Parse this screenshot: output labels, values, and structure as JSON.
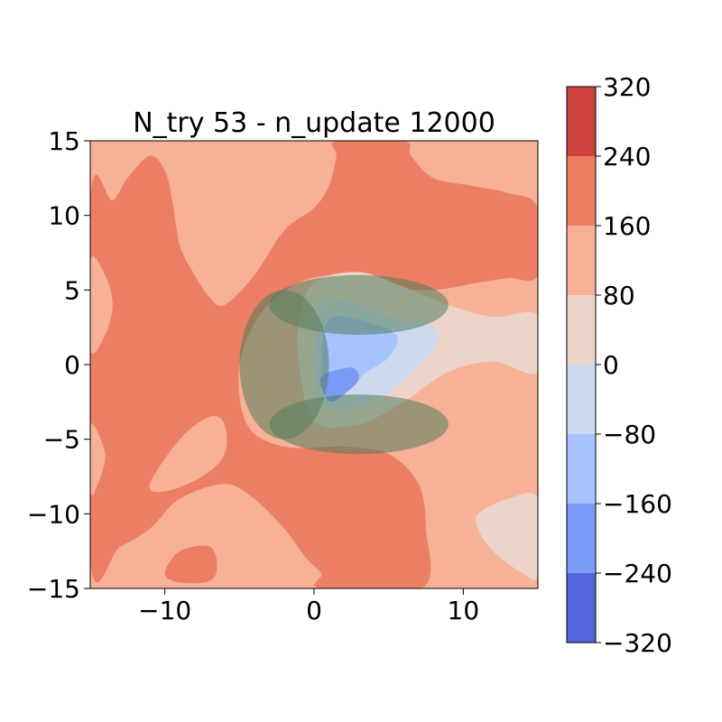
{
  "chart_data": {
    "type": "contourf",
    "title": "N_try 53 - n_update 12000",
    "xlabel": "",
    "ylabel": "",
    "xlim": [
      -15,
      15
    ],
    "ylim": [
      -15,
      15
    ],
    "x_ticks": [
      -10,
      0,
      10
    ],
    "x_tick_labels": [
      "−10",
      "0",
      "10"
    ],
    "y_ticks": [
      -15,
      -10,
      -5,
      0,
      5,
      10,
      15
    ],
    "y_tick_labels": [
      "−15",
      "−10",
      "−5",
      "0",
      "5",
      "10",
      "15"
    ],
    "grid": false,
    "colormap": "coolwarm",
    "colorbar": {
      "levels": [
        -320,
        -240,
        -160,
        -80,
        0,
        80,
        160,
        240,
        320
      ],
      "tick_labels": [
        "−320",
        "−240",
        "−160",
        "−80",
        "0",
        "80",
        "160",
        "240",
        "320"
      ],
      "band_colors": [
        "#5166da",
        "#7b9af6",
        "#a6c3fd",
        "#ccd9ee",
        "#ecd4c9",
        "#f6b196",
        "#ec7f63",
        "#cd423b"
      ]
    },
    "regions": [
      {
        "name": "level 80-160 (background)",
        "band": 5,
        "points": [
          [
            -15,
            -15
          ],
          [
            15,
            -15
          ],
          [
            15,
            15
          ],
          [
            -15,
            15
          ]
        ]
      },
      {
        "name": "level 160-240 main region",
        "band": 6,
        "points": [
          [
            -15,
            11
          ],
          [
            -13.5,
            11
          ],
          [
            -12.5,
            12.5
          ],
          [
            -11,
            14
          ],
          [
            -10,
            13
          ],
          [
            -9.5,
            11
          ],
          [
            -9,
            8
          ],
          [
            -8,
            6
          ],
          [
            -7,
            4.5
          ],
          [
            -6,
            4
          ],
          [
            -4,
            6
          ],
          [
            -2,
            9
          ],
          [
            0,
            10.5
          ],
          [
            1,
            12
          ],
          [
            1.5,
            14
          ],
          [
            1.5,
            15
          ],
          [
            6,
            15
          ],
          [
            6.5,
            14
          ],
          [
            8,
            12.5
          ],
          [
            10.5,
            12
          ],
          [
            13,
            11.5
          ],
          [
            15,
            10.5
          ],
          [
            15,
            6
          ],
          [
            13,
            5.8
          ],
          [
            11,
            5.5
          ],
          [
            8,
            5
          ],
          [
            5,
            5.2
          ],
          [
            2,
            6
          ],
          [
            -1,
            5.5
          ],
          [
            -3.5,
            3.5
          ],
          [
            -5,
            0
          ],
          [
            -4.5,
            -4
          ],
          [
            -2,
            -5.5
          ],
          [
            2,
            -5.5
          ],
          [
            5,
            -6
          ],
          [
            7,
            -8
          ],
          [
            7.5,
            -11
          ],
          [
            7.2,
            -15
          ],
          [
            0.5,
            -15
          ],
          [
            0.5,
            -14
          ],
          [
            -0.5,
            -13
          ],
          [
            -2,
            -11
          ],
          [
            -4,
            -9
          ],
          [
            -6,
            -8
          ],
          [
            -9,
            -9
          ],
          [
            -11,
            -11
          ],
          [
            -13,
            -12.2
          ],
          [
            -15,
            -13
          ]
        ]
      },
      {
        "name": "level 80-160 upper-left pocket",
        "band": 5,
        "points": [
          [
            -15,
            7
          ],
          [
            -14,
            6
          ],
          [
            -13.5,
            4
          ],
          [
            -14,
            2
          ],
          [
            -15,
            1
          ]
        ]
      },
      {
        "name": "level 80-160 lower-left pocket",
        "band": 5,
        "points": [
          [
            -11,
            -8
          ],
          [
            -9,
            -5
          ],
          [
            -7,
            -3.5
          ],
          [
            -6,
            -4
          ],
          [
            -6,
            -6
          ],
          [
            -7.5,
            -7.5
          ],
          [
            -10,
            -8.5
          ]
        ]
      },
      {
        "name": "level 80-160 left-edge pocket",
        "band": 5,
        "points": [
          [
            -15,
            -4
          ],
          [
            -14,
            -6
          ],
          [
            -14.5,
            -8
          ],
          [
            -15,
            -8.5
          ]
        ]
      },
      {
        "name": "level 160-240 bottom pocket",
        "band": 6,
        "points": [
          [
            -10,
            -14
          ],
          [
            -9,
            -12.5
          ],
          [
            -7,
            -12.2
          ],
          [
            -6.5,
            -13.5
          ],
          [
            -7,
            -14.5
          ],
          [
            -9,
            -14.6
          ]
        ]
      },
      {
        "name": "level 0-80 right plume",
        "band": 4,
        "points": [
          [
            0,
            5.5
          ],
          [
            3,
            6.2
          ],
          [
            6,
            5.2
          ],
          [
            9,
            4
          ],
          [
            12,
            3.2
          ],
          [
            15,
            3.3
          ],
          [
            15,
            -0.5
          ],
          [
            12,
            0.2
          ],
          [
            9,
            -0.5
          ],
          [
            6,
            -2.5
          ],
          [
            3,
            -4
          ],
          [
            0,
            -3.8
          ],
          [
            -1,
            0
          ],
          [
            -1,
            3
          ]
        ]
      },
      {
        "name": "level 0-80 lower-right corner",
        "band": 4,
        "points": [
          [
            11,
            -10
          ],
          [
            13,
            -9
          ],
          [
            15,
            -9
          ],
          [
            15,
            -14
          ],
          [
            14,
            -14
          ],
          [
            12,
            -12.5
          ],
          [
            11,
            -11
          ]
        ]
      },
      {
        "name": "level -80-0 inner",
        "band": 3,
        "points": [
          [
            0.5,
            4
          ],
          [
            2.5,
            4.2
          ],
          [
            5,
            3.2
          ],
          [
            8,
            2.5
          ],
          [
            8,
            1
          ],
          [
            6,
            -1
          ],
          [
            4,
            -2.5
          ],
          [
            2,
            -3
          ],
          [
            0.5,
            -2.5
          ],
          [
            0,
            0
          ]
        ]
      },
      {
        "name": "level -160--80 core",
        "band": 2,
        "points": [
          [
            1,
            3
          ],
          [
            3,
            3
          ],
          [
            5.5,
            2
          ],
          [
            5,
            0.5
          ],
          [
            3.5,
            -0.5
          ],
          [
            2.5,
            -1.5
          ],
          [
            1.5,
            -2.2
          ],
          [
            0.8,
            -1.5
          ],
          [
            0.5,
            0.5
          ]
        ]
      },
      {
        "name": "level -240--160 core",
        "band": 1,
        "points": [
          [
            0.5,
            -0.8
          ],
          [
            2.5,
            -0.2
          ],
          [
            3,
            -1
          ],
          [
            2,
            -2
          ],
          [
            1.2,
            -2.5
          ],
          [
            0.7,
            -2
          ]
        ]
      }
    ],
    "ellipses": [
      {
        "name": "green obstacle left",
        "cx": -2,
        "cy": 0,
        "rx": 3,
        "ry": 5,
        "color": "#527c5c",
        "opacity": 0.55
      },
      {
        "name": "green obstacle top",
        "cx": 3,
        "cy": 4,
        "rx": 6,
        "ry": 2,
        "color": "#527c5c",
        "opacity": 0.55
      },
      {
        "name": "green obstacle bottom",
        "cx": 3,
        "cy": -4,
        "rx": 6,
        "ry": 2,
        "color": "#527c5c",
        "opacity": 0.55
      }
    ]
  }
}
